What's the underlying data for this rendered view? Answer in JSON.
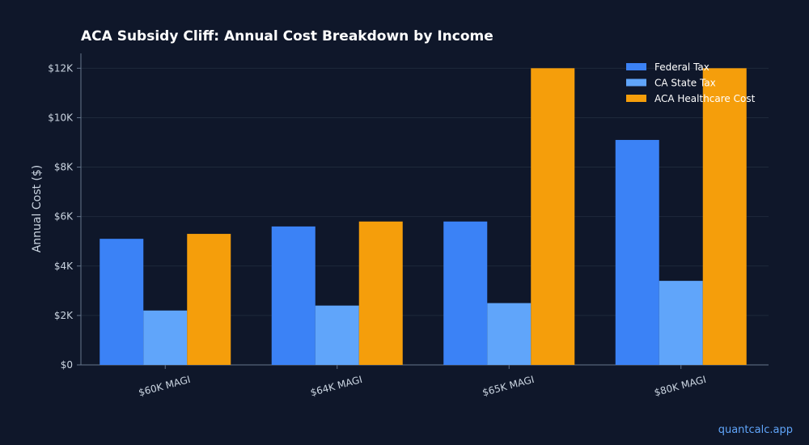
{
  "chart_data": {
    "type": "bar",
    "title": "ACA Subsidy Cliff: Annual Cost Breakdown by Income",
    "xlabel": "",
    "ylabel": "Annual Cost ($)",
    "categories": [
      "$60K MAGI",
      "$64K MAGI",
      "$65K MAGI",
      "$80K MAGI"
    ],
    "series": [
      {
        "name": "Federal Tax",
        "color": "#3b82f6",
        "values": [
          5100,
          5600,
          5800,
          9100
        ]
      },
      {
        "name": "CA State Tax",
        "color": "#60a5fa",
        "values": [
          2200,
          2400,
          2500,
          3400
        ]
      },
      {
        "name": "ACA Healthcare Cost",
        "color": "#f59e0b",
        "values": [
          5300,
          5800,
          12000,
          12000
        ]
      }
    ],
    "ylim": [
      0,
      12600
    ],
    "yticks": [
      0,
      2000,
      4000,
      6000,
      8000,
      10000,
      12000
    ],
    "ytick_labels": [
      "$0",
      "$2K",
      "$4K",
      "$6K",
      "$8K",
      "$10K",
      "$12K"
    ],
    "grid": true,
    "legend": "top-right"
  },
  "footer": {
    "watermark": "quantcalc.app"
  }
}
